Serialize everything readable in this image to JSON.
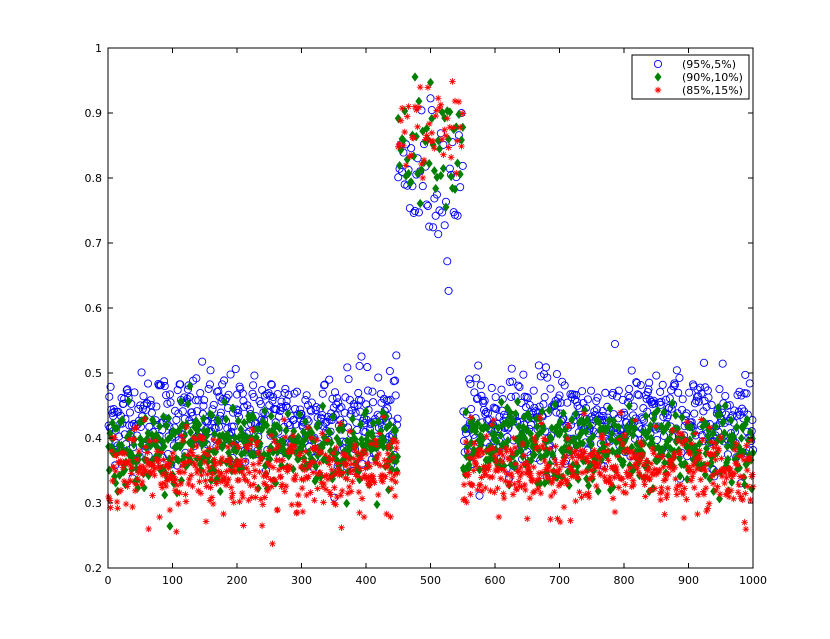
{
  "chart_data": {
    "type": "scatter",
    "title": "",
    "xlabel": "",
    "ylabel": "",
    "xlim": [
      0,
      1000
    ],
    "ylim": [
      0.2,
      1
    ],
    "xticks": [
      0,
      100,
      200,
      300,
      400,
      500,
      600,
      700,
      800,
      900,
      1000
    ],
    "xtick_labels": [
      "0",
      "100",
      "200",
      "300",
      "400",
      "500",
      "600",
      "700",
      "800",
      "900",
      "1000"
    ],
    "yticks": [
      0.2,
      0.3,
      0.4,
      0.5,
      0.6,
      0.7,
      0.8,
      0.9,
      1
    ],
    "ytick_labels": [
      "0.2",
      "0.3",
      "0.4",
      "0.5",
      "0.6",
      "0.7",
      "0.8",
      "0.9",
      "1"
    ],
    "grid": false,
    "legend_position": "top-right",
    "segments": [
      {
        "x_range": [
          0,
          450
        ],
        "level": "low"
      },
      {
        "x_range": [
          450,
          550
        ],
        "level": "high"
      },
      {
        "x_range": [
          550,
          1000
        ],
        "level": "low"
      }
    ],
    "series": [
      {
        "name": "(95%,5%)",
        "marker": "circle-open",
        "color": "#0000ff",
        "low_mean": 0.43,
        "low_spread": 0.035,
        "high_mean": 0.8,
        "high_spread": 0.06
      },
      {
        "name": "(90%,10%)",
        "marker": "diamond-filled",
        "color": "#008000",
        "low_mean": 0.385,
        "low_spread": 0.03,
        "high_mean": 0.86,
        "high_spread": 0.04
      },
      {
        "name": "(85%,15%)",
        "marker": "asterisk",
        "color": "#ff0000",
        "low_mean": 0.35,
        "low_spread": 0.03,
        "high_mean": 0.87,
        "high_spread": 0.035
      }
    ]
  }
}
